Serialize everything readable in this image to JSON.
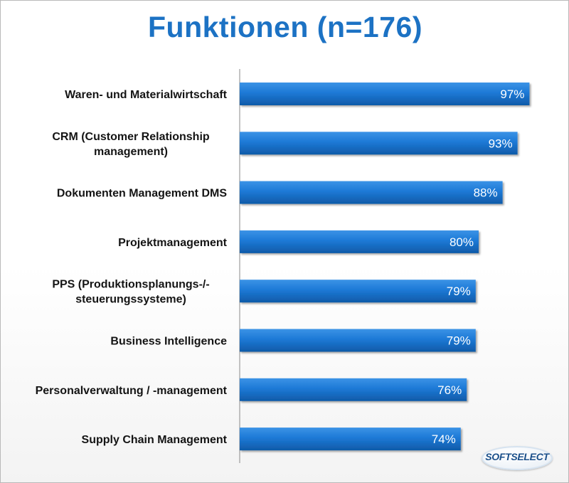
{
  "title": "Funktionen (n=176)",
  "logo": {
    "text": "SOFTSELECT"
  },
  "colors": {
    "bar": "#1d79d6",
    "bar_dark": "#0f5aa8",
    "title": "#1c72c4",
    "axis": "#8a8a8a"
  },
  "chart_data": {
    "type": "bar",
    "orientation": "horizontal",
    "title": "Funktionen (n=176)",
    "xlim": [
      0,
      100
    ],
    "unit": "%",
    "grid": false,
    "categories": [
      [
        "Waren- und Materialwirtschaft"
      ],
      [
        "CRM (Customer Relationship",
        "management)"
      ],
      [
        "Dokumenten Management DMS"
      ],
      [
        "Projektmanagement"
      ],
      [
        "PPS (Produktionsplanungs-/-",
        "steuerungssysteme)"
      ],
      [
        "Business Intelligence"
      ],
      [
        "Personalverwaltung / -management"
      ],
      [
        "Supply Chain Management"
      ]
    ],
    "values": [
      97,
      93,
      88,
      80,
      79,
      79,
      76,
      74
    ],
    "value_labels": [
      "97%",
      "93%",
      "88%",
      "80%",
      "79%",
      "79%",
      "76%",
      "74%"
    ]
  }
}
